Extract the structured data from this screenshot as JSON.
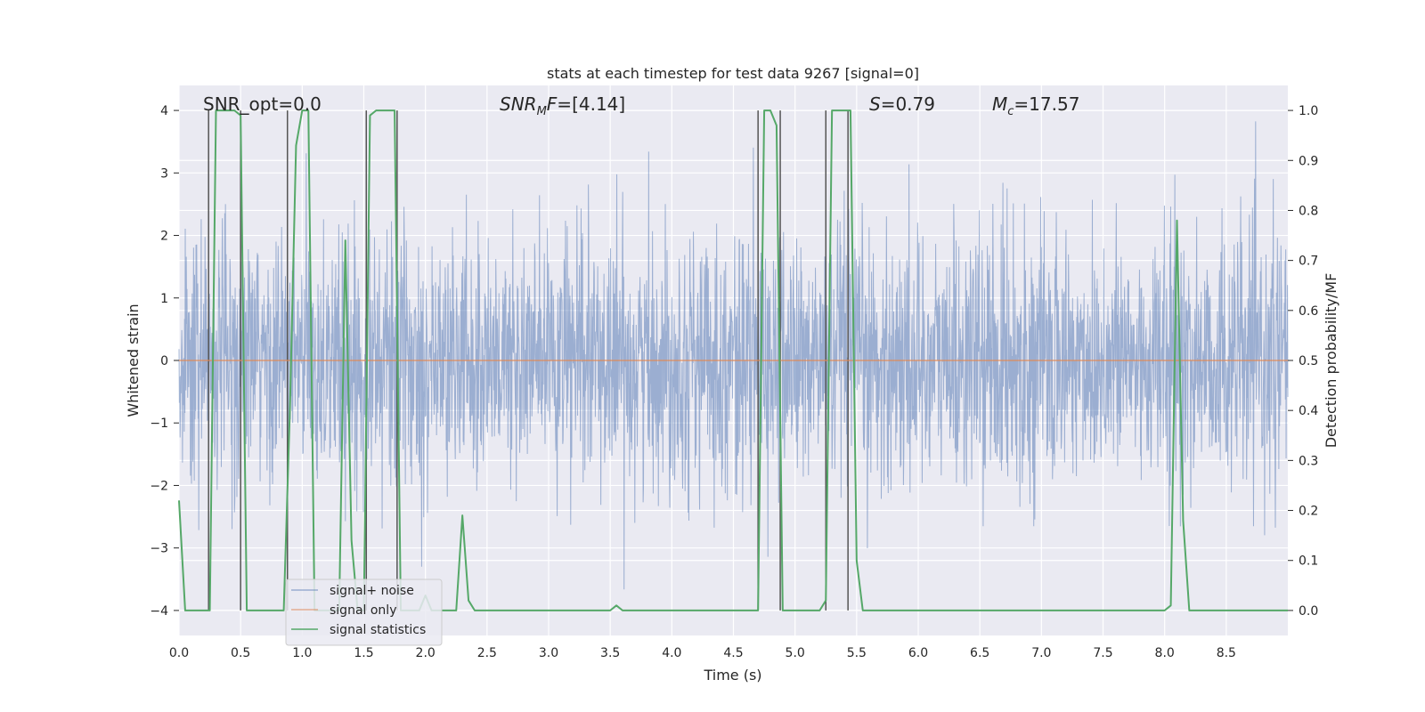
{
  "chart_data": {
    "type": "line",
    "title": "stats at each timestep for test data 9267 [signal=0]",
    "xlabel": "Time (s)",
    "ylabel_left": "Whitened strain",
    "ylabel_right": "Detection probability/MF",
    "xlim": [
      0.0,
      9.0
    ],
    "ylim_left": [
      -4.4,
      4.4
    ],
    "ylim_right": [
      -0.05,
      1.05
    ],
    "x_ticks": [
      "0.0",
      "0.5",
      "1.0",
      "1.5",
      "2.0",
      "2.5",
      "3.0",
      "3.5",
      "4.0",
      "4.5",
      "5.0",
      "5.5",
      "6.0",
      "6.5",
      "7.0",
      "7.5",
      "8.0",
      "8.5"
    ],
    "y_ticks_left": [
      "−4",
      "−3",
      "−2",
      "−1",
      "0",
      "1",
      "2",
      "3",
      "4"
    ],
    "y_ticks_right": [
      "0.0",
      "0.1",
      "0.2",
      "0.3",
      "0.4",
      "0.5",
      "0.6",
      "0.7",
      "0.8",
      "0.9",
      "1.0"
    ],
    "grid": true,
    "annotations": {
      "snr_opt": "SNR_opt=0.0",
      "snr_mf": "[4.14]",
      "s_value": "=0.79",
      "mc_value": "=17.57"
    },
    "legend": {
      "placement": "lower-left",
      "entries": [
        "signal+ noise",
        "signal only",
        "signal statistics"
      ]
    },
    "series": [
      {
        "name": "signal+ noise",
        "color": "#4c72b0",
        "description_values": {
          "approx_std": 1.0,
          "approx_peak_max": 4.0,
          "approx_peak_min": -3.8
        }
      },
      {
        "name": "signal only",
        "color": "#dd8452",
        "x": [
          0.0,
          9.0
        ],
        "y": [
          0.0,
          0.0
        ]
      },
      {
        "name": "signal statistics",
        "color": "#55a868",
        "x": [
          0.0,
          0.05,
          0.1,
          0.15,
          0.2,
          0.25,
          0.3,
          0.35,
          0.4,
          0.45,
          0.5,
          0.55,
          0.6,
          0.65,
          0.7,
          0.75,
          0.8,
          0.85,
          0.9,
          0.95,
          1.0,
          1.05,
          1.1,
          1.15,
          1.2,
          1.25,
          1.3,
          1.35,
          1.4,
          1.45,
          1.5,
          1.55,
          1.6,
          1.65,
          1.7,
          1.75,
          1.8,
          1.85,
          1.9,
          1.95,
          2.0,
          2.05,
          2.1,
          2.15,
          2.2,
          2.25,
          2.3,
          2.35,
          2.4,
          2.45,
          2.5,
          3.5,
          3.55,
          3.6,
          3.65,
          3.7,
          4.5,
          4.6,
          4.7,
          4.75,
          4.8,
          4.85,
          4.9,
          4.95,
          5.0,
          5.1,
          5.2,
          5.25,
          5.3,
          5.35,
          5.4,
          5.45,
          5.5,
          5.55,
          5.6,
          6.0,
          8.0,
          8.05,
          8.1,
          8.15,
          8.2,
          8.25,
          8.3,
          9.0
        ],
        "y": [
          0.22,
          0.0,
          0.0,
          0.0,
          0.0,
          0.0,
          1.0,
          1.0,
          1.0,
          1.0,
          0.99,
          0.0,
          0.0,
          0.0,
          0.0,
          0.0,
          0.0,
          0.0,
          0.4,
          0.93,
          1.0,
          1.0,
          0.0,
          0.0,
          0.0,
          0.0,
          0.0,
          0.74,
          0.14,
          0.0,
          0.0,
          0.99,
          1.0,
          1.0,
          1.0,
          1.0,
          0.0,
          0.0,
          0.0,
          0.0,
          0.03,
          0.0,
          0.0,
          0.0,
          0.0,
          0.0,
          0.19,
          0.02,
          0.0,
          0.0,
          0.0,
          0.0,
          0.01,
          0.0,
          0.0,
          0.0,
          0.0,
          0.0,
          0.0,
          1.0,
          1.0,
          0.97,
          0.0,
          0.0,
          0.0,
          0.0,
          0.0,
          0.02,
          1.0,
          1.0,
          1.0,
          1.0,
          0.1,
          0.0,
          0.0,
          0.0,
          0.0,
          0.01,
          0.78,
          0.18,
          0.0,
          0.0,
          0.0,
          0.0
        ]
      }
    ],
    "vertical_markers_x": [
      0.24,
      0.5,
      0.88,
      1.52,
      1.77,
      4.7,
      4.88,
      5.25,
      5.43
    ]
  }
}
